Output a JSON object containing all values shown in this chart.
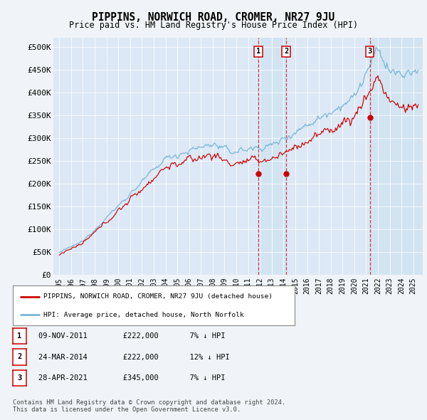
{
  "title": "PIPPINS, NORWICH ROAD, CROMER, NR27 9JU",
  "subtitle": "Price paid vs. HM Land Registry's House Price Index (HPI)",
  "background_color": "#f0f4f8",
  "plot_background": "#dce8f5",
  "ylim": [
    0,
    520000
  ],
  "yticks": [
    0,
    50000,
    100000,
    150000,
    200000,
    250000,
    300000,
    350000,
    400000,
    450000,
    500000
  ],
  "ytick_labels": [
    "£0",
    "£50K",
    "£100K",
    "£150K",
    "£200K",
    "£250K",
    "£300K",
    "£350K",
    "£400K",
    "£450K",
    "£500K"
  ],
  "sale_events": [
    {
      "label": "1",
      "date": "09-NOV-2011",
      "price": 222000,
      "pct": "7%",
      "dir": "↓",
      "x_year": 2011.86
    },
    {
      "label": "2",
      "date": "24-MAR-2014",
      "price": 222000,
      "pct": "12%",
      "dir": "↓",
      "x_year": 2014.23
    },
    {
      "label": "3",
      "date": "28-APR-2021",
      "price": 345000,
      "pct": "7%",
      "dir": "↓",
      "x_year": 2021.32
    }
  ],
  "legend_line1": "PIPPINS, NORWICH ROAD, CROMER, NR27 9JU (detached house)",
  "legend_line2": "HPI: Average price, detached house, North Norfolk",
  "footer_line1": "Contains HM Land Registry data © Crown copyright and database right 2024.",
  "footer_line2": "This data is licensed under the Open Government Licence v3.0.",
  "hpi_color": "#7ab8d9",
  "price_color": "#cc0000",
  "vline_color": "#cc0000",
  "shade_color": "#d0e4f2",
  "xlim_left": 1994.5,
  "xlim_right": 2025.8,
  "x_start": 1995,
  "x_end": 2025
}
